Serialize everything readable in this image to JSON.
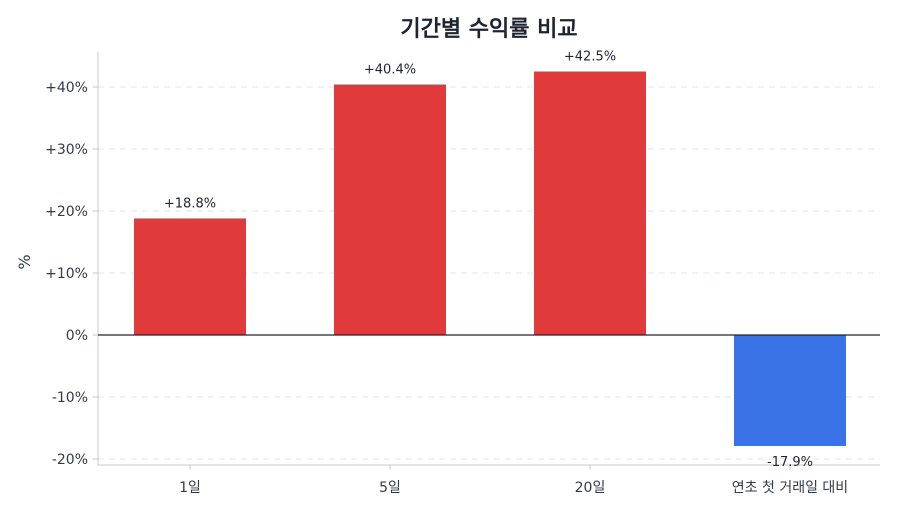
{
  "chart_data": {
    "type": "bar",
    "title": "기간별 수익률 비교",
    "ylabel": "%",
    "xlabel": "",
    "ylim": [
      -20,
      45
    ],
    "yticks": [
      -20,
      -10,
      0,
      10,
      20,
      30,
      40
    ],
    "ytick_labels": [
      "-20%",
      "-10%",
      "0%",
      "+10%",
      "+20%",
      "+30%",
      "+40%"
    ],
    "grid": true,
    "categories": [
      "1일",
      "5일",
      "20일",
      "연초 첫 거래일 대비"
    ],
    "values": [
      18.8,
      40.4,
      42.5,
      -17.9
    ],
    "data_labels": [
      "+18.8%",
      "+40.4%",
      "+42.5%",
      "-17.9%"
    ],
    "colors": {
      "positive": "#e03a3a",
      "negative": "#3a72e8"
    }
  }
}
